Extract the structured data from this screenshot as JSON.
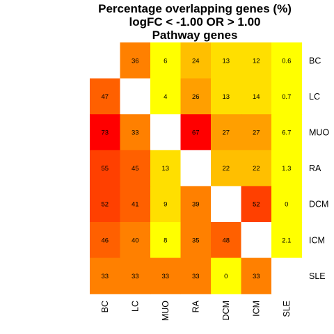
{
  "chart_data": {
    "type": "heatmap",
    "title_lines": [
      "Percentage overlapping genes (%)",
      "logFC < -1.00 OR > 1.00",
      "Pathway genes"
    ],
    "rows": [
      "BC",
      "LC",
      "MUO",
      "RA",
      "DCM",
      "ICM",
      "SLE"
    ],
    "cols": [
      "BC",
      "LC",
      "MUO",
      "RA",
      "DCM",
      "ICM",
      "SLE"
    ],
    "values": [
      [
        null,
        36,
        6,
        24,
        13,
        12,
        0.6
      ],
      [
        47,
        null,
        4,
        26,
        13,
        14,
        0.7
      ],
      [
        73,
        33,
        null,
        67,
        27,
        27,
        6.7
      ],
      [
        55,
        45,
        13,
        null,
        22,
        22,
        1.3
      ],
      [
        52,
        41,
        9,
        39,
        null,
        52,
        0
      ],
      [
        46,
        40,
        8,
        35,
        48,
        null,
        2.1
      ],
      [
        33,
        33,
        33,
        33,
        0,
        33,
        null
      ]
    ],
    "colors": {
      "low": "#ffff00",
      "high": "#ff0000",
      "diagonal": "#ffffff"
    }
  }
}
